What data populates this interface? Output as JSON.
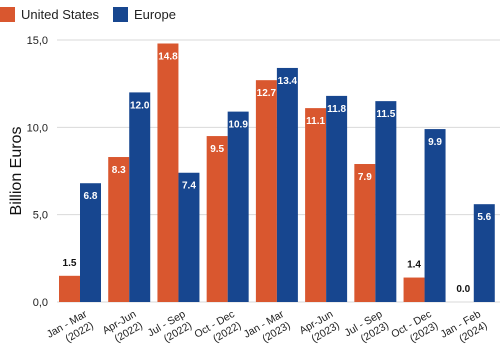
{
  "chart_data": {
    "type": "bar",
    "ylabel": "Billion Euros",
    "xlabel": "",
    "ylim": [
      0,
      15
    ],
    "yticks": [
      "0,0",
      "5,0",
      "10,0",
      "15,0"
    ],
    "ytick_values": [
      0,
      5,
      10,
      15
    ],
    "grid": true,
    "legend_position": "top-left",
    "categories": [
      [
        "Jan - Mar",
        "(2022)"
      ],
      [
        "Apr-Jun",
        "(2022)"
      ],
      [
        "Jul - Sep",
        "(2022)"
      ],
      [
        "Oct - Dec",
        "(2022)"
      ],
      [
        "Jan - Mar",
        "(2023)"
      ],
      [
        "Apr-Jun",
        "(2023)"
      ],
      [
        "Jul - Sep",
        "(2023)"
      ],
      [
        "Oct - Dec",
        "(2023)"
      ],
      [
        "Jan - Feb",
        "(2024)"
      ]
    ],
    "series": [
      {
        "name": "United States",
        "color": "#d9572f",
        "values": [
          1.5,
          8.3,
          14.8,
          9.5,
          12.7,
          11.1,
          7.9,
          1.4,
          0.0
        ],
        "labels": [
          "1.5",
          "8.3",
          "14.8",
          "9.5",
          "12.7",
          "11.1",
          "7.9",
          "1.4",
          "0.0"
        ]
      },
      {
        "name": "Europe",
        "color": "#17468f",
        "values": [
          6.8,
          12.0,
          7.4,
          10.9,
          13.4,
          11.8,
          11.5,
          9.9,
          5.6
        ],
        "labels": [
          "6.8",
          "12.0",
          "7.4",
          "10.9",
          "13.4",
          "11.8",
          "11.5",
          "9.9",
          "5.6"
        ]
      }
    ]
  }
}
